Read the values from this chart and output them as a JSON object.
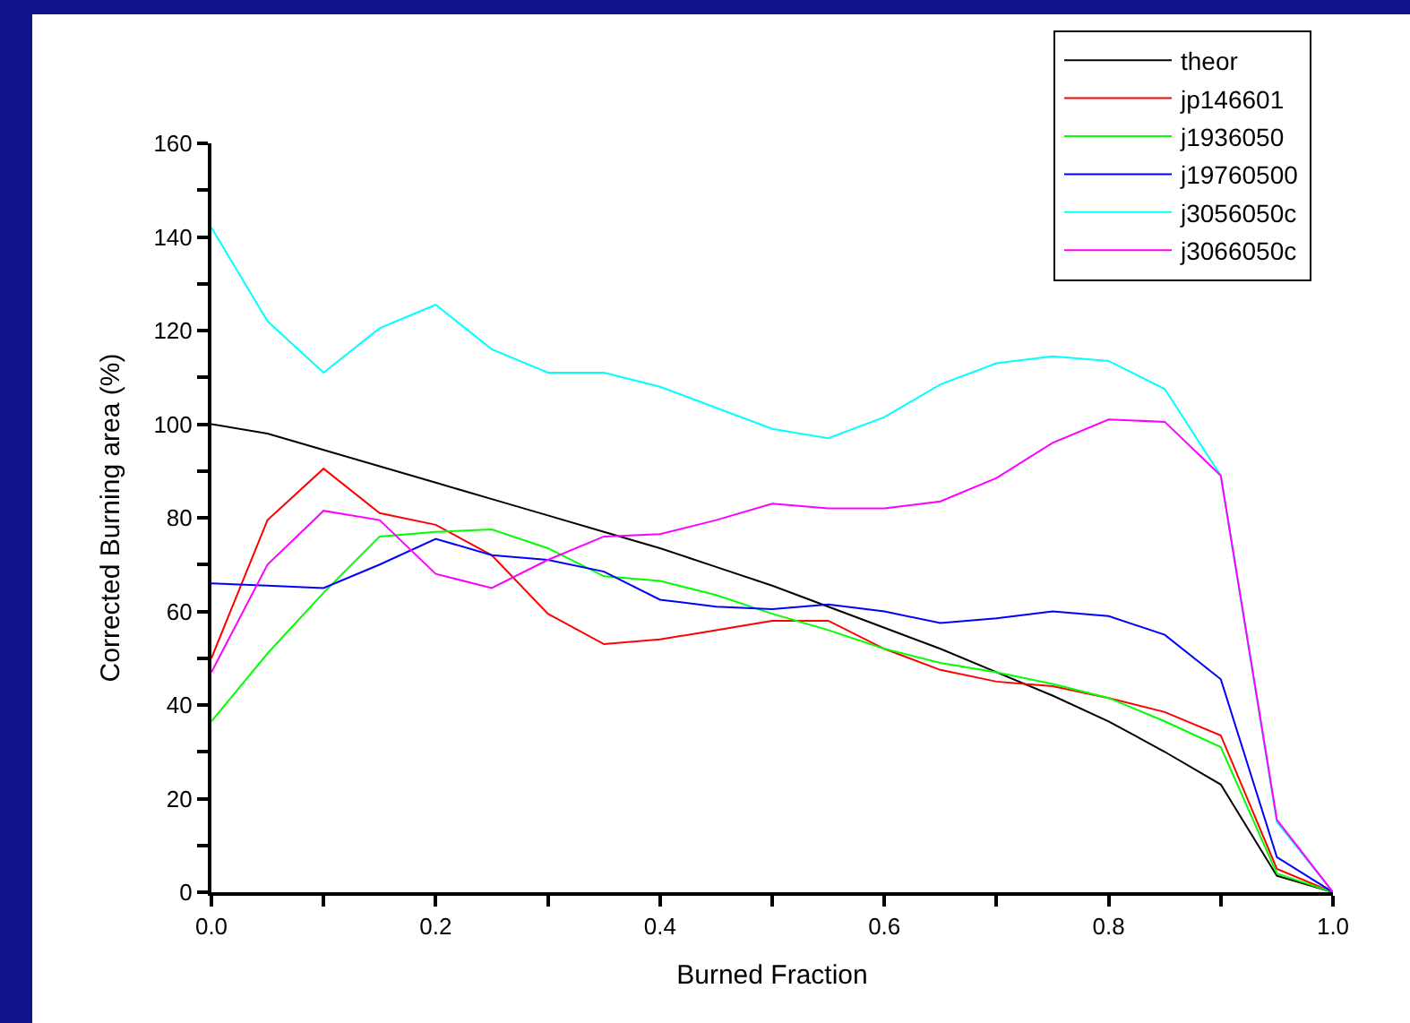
{
  "chart_data": {
    "type": "line",
    "xlabel": "Burned Fraction",
    "ylabel": "Corrected Burning area (%)",
    "x": [
      0,
      0.05,
      0.1,
      0.15,
      0.2,
      0.25,
      0.3,
      0.35,
      0.4,
      0.45,
      0.5,
      0.55,
      0.6,
      0.65,
      0.7,
      0.75,
      0.8,
      0.85,
      0.9,
      0.95,
      1.0
    ],
    "xlim": [
      0,
      1
    ],
    "xticks": [
      {
        "value": 0,
        "label": "0.0"
      },
      {
        "value": 0.1,
        "label": null
      },
      {
        "value": 0.2,
        "label": "0.2"
      },
      {
        "value": 0.3,
        "label": null
      },
      {
        "value": 0.4,
        "label": "0.4"
      },
      {
        "value": 0.5,
        "label": null
      },
      {
        "value": 0.6,
        "label": "0.6"
      },
      {
        "value": 0.7,
        "label": null
      },
      {
        "value": 0.8,
        "label": "0.8"
      },
      {
        "value": 0.9,
        "label": null
      },
      {
        "value": 1,
        "label": "1.0"
      }
    ],
    "ylim": [
      0,
      160
    ],
    "yticks": [
      0,
      {
        "value": 10,
        "label": null
      },
      20,
      {
        "value": 30,
        "label": null
      },
      40,
      {
        "value": 50,
        "label": null
      },
      60,
      {
        "value": 70,
        "label": null
      },
      80,
      {
        "value": 90,
        "label": null
      },
      100,
      {
        "value": 110,
        "label": null
      },
      120,
      {
        "value": 130,
        "label": null
      },
      140,
      {
        "value": 150,
        "label": null
      },
      160
    ],
    "legend": "top right",
    "marker": "none",
    "line_style": "solid",
    "series": [
      {
        "name": "theor",
        "color": "#000000",
        "values": [
          100,
          98,
          94.5,
          91,
          87.5,
          84,
          80.5,
          77,
          73.5,
          69.5,
          65.5,
          61,
          56.5,
          52,
          47,
          42,
          36.5,
          30,
          23,
          3.5,
          0
        ]
      },
      {
        "name": "jp146601",
        "color": "#ff0000",
        "values": [
          50,
          79.5,
          90.5,
          81,
          78.5,
          72,
          59.5,
          53,
          54,
          56,
          58,
          58,
          52,
          47.5,
          45,
          44,
          41.5,
          38.5,
          33.5,
          5,
          0
        ]
      },
      {
        "name": "j1936050",
        "color": "#00ff00",
        "values": [
          36.5,
          51,
          64,
          76,
          77,
          77.5,
          73.5,
          67.5,
          66.5,
          63.5,
          59.5,
          56,
          52,
          49,
          47,
          44.5,
          41.5,
          36.5,
          31,
          4,
          0
        ]
      },
      {
        "name": "j19760500",
        "color": "#0000ff",
        "values": [
          66,
          65.5,
          65,
          70,
          75.5,
          72,
          71,
          68.5,
          62.5,
          61,
          60.5,
          61.5,
          60,
          57.5,
          58.5,
          60,
          59,
          55,
          45.5,
          7.5,
          0
        ]
      },
      {
        "name": "j3056050c",
        "color": "#00ffff",
        "values": [
          142,
          122,
          111,
          120.5,
          125.5,
          116,
          111,
          111,
          108,
          103.5,
          99,
          97,
          101.5,
          108.5,
          113,
          114.5,
          113.5,
          107.5,
          89,
          15,
          0
        ]
      },
      {
        "name": "j3066050c",
        "color": "#ff00ff",
        "values": [
          47,
          70,
          81.5,
          79.5,
          68,
          65,
          71,
          76,
          76.5,
          79.5,
          83,
          82,
          82,
          83.5,
          88.5,
          96,
          101,
          100.5,
          89,
          15.5,
          0
        ]
      }
    ]
  }
}
